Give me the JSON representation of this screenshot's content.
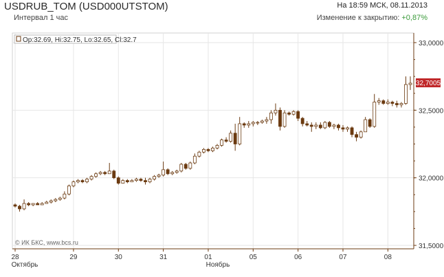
{
  "header": {
    "title": "USDRUB_TOM (USD000UTSTOM)",
    "subtitle": "Интервал 1 час",
    "timestamp": "На 18:59 МСК, 08.11.2013",
    "change_label": "Изменение к закрытию:",
    "change_value": "+0,87%"
  },
  "legend": {
    "ohlc": "Op:32.69, Hi:32.75, Lo:32.65, Cl:32.7"
  },
  "copyright": "© ИК БКС, www.bcs.ru",
  "last_price_label": "32,7005",
  "colors": {
    "up": "#ffffff",
    "down": "#6b3a10",
    "wick": "#6b3a10",
    "axis": "#6b3a10",
    "grid": "#e6e6e6",
    "last_price_bg": "#c0282a"
  },
  "chart_data": {
    "type": "candlestick",
    "y_axis": {
      "position": "right",
      "ylim": [
        31.5,
        33.0
      ],
      "ticks": [
        33.0,
        32.5,
        32.0,
        31.5
      ],
      "tick_labels": [
        "33,0000",
        "32,5000",
        "32,0000",
        "31,5000"
      ]
    },
    "x_axis": {
      "ticks": [
        {
          "label": "28",
          "sublabel": "Октябрь",
          "index": 0
        },
        {
          "label": "29",
          "sublabel": "",
          "index": 13
        },
        {
          "label": "30",
          "sublabel": "",
          "index": 23
        },
        {
          "label": "31",
          "sublabel": "",
          "index": 33
        },
        {
          "label": "01",
          "sublabel": "Ноябрь",
          "index": 43
        },
        {
          "label": "05",
          "sublabel": "",
          "index": 53
        },
        {
          "label": "06",
          "sublabel": "",
          "index": 63
        },
        {
          "label": "07",
          "sublabel": "",
          "index": 73
        },
        {
          "label": "08",
          "sublabel": "",
          "index": 83
        }
      ]
    },
    "candles": [
      [
        31.8,
        31.81,
        31.78,
        31.79
      ],
      [
        31.79,
        31.8,
        31.75,
        31.77
      ],
      [
        31.77,
        31.84,
        31.76,
        31.81
      ],
      [
        31.81,
        31.82,
        31.79,
        31.8
      ],
      [
        31.8,
        31.81,
        31.79,
        31.81
      ],
      [
        31.81,
        31.82,
        31.8,
        31.8
      ],
      [
        31.8,
        31.82,
        31.8,
        31.81
      ],
      [
        31.81,
        31.83,
        31.81,
        31.82
      ],
      [
        31.82,
        31.84,
        31.81,
        31.83
      ],
      [
        31.83,
        31.85,
        31.82,
        31.84
      ],
      [
        31.84,
        31.86,
        31.83,
        31.85
      ],
      [
        31.85,
        31.9,
        31.84,
        31.88
      ],
      [
        31.88,
        31.95,
        31.87,
        31.94
      ],
      [
        31.94,
        31.98,
        31.93,
        31.97
      ],
      [
        31.97,
        31.99,
        31.96,
        31.98
      ],
      [
        31.98,
        31.99,
        31.96,
        31.97
      ],
      [
        31.97,
        32.0,
        31.96,
        31.99
      ],
      [
        31.99,
        32.02,
        31.98,
        32.01
      ],
      [
        32.01,
        32.04,
        32.0,
        32.03
      ],
      [
        32.03,
        32.05,
        32.02,
        32.04
      ],
      [
        32.04,
        32.05,
        32.02,
        32.03
      ],
      [
        32.03,
        32.11,
        32.03,
        32.05
      ],
      [
        32.05,
        32.06,
        31.99,
        32.0
      ],
      [
        32.0,
        32.01,
        31.95,
        31.96
      ],
      [
        31.96,
        31.99,
        31.96,
        31.98
      ],
      [
        31.98,
        31.99,
        31.96,
        31.97
      ],
      [
        31.97,
        31.99,
        31.97,
        31.98
      ],
      [
        31.98,
        32.0,
        31.97,
        31.99
      ],
      [
        31.99,
        32.0,
        31.97,
        31.98
      ],
      [
        31.98,
        32.0,
        31.95,
        31.97
      ],
      [
        31.97,
        32.0,
        31.96,
        31.99
      ],
      [
        31.99,
        32.02,
        31.98,
        32.01
      ],
      [
        32.01,
        32.03,
        32.0,
        32.02
      ],
      [
        32.02,
        32.12,
        32.01,
        32.06
      ],
      [
        32.06,
        32.07,
        32.02,
        32.03
      ],
      [
        32.03,
        32.05,
        32.02,
        32.04
      ],
      [
        32.04,
        32.06,
        32.03,
        32.05
      ],
      [
        32.05,
        32.11,
        32.04,
        32.1
      ],
      [
        32.1,
        32.11,
        32.06,
        32.07
      ],
      [
        32.07,
        32.12,
        32.06,
        32.11
      ],
      [
        32.11,
        32.18,
        32.1,
        32.16
      ],
      [
        32.16,
        32.2,
        32.15,
        32.19
      ],
      [
        32.19,
        32.22,
        32.18,
        32.21
      ],
      [
        32.21,
        32.22,
        32.19,
        32.2
      ],
      [
        32.2,
        32.23,
        32.19,
        32.22
      ],
      [
        32.22,
        32.25,
        32.21,
        32.24
      ],
      [
        32.24,
        32.29,
        32.23,
        32.28
      ],
      [
        32.28,
        32.3,
        32.26,
        32.27
      ],
      [
        32.27,
        32.35,
        32.26,
        32.33
      ],
      [
        32.33,
        32.4,
        32.2,
        32.25
      ],
      [
        32.25,
        32.45,
        32.24,
        32.4
      ],
      [
        32.4,
        32.41,
        32.37,
        32.39
      ],
      [
        32.39,
        32.42,
        32.37,
        32.4
      ],
      [
        32.4,
        32.42,
        32.38,
        32.41
      ],
      [
        32.41,
        32.42,
        32.39,
        32.41
      ],
      [
        32.41,
        32.43,
        32.4,
        32.42
      ],
      [
        32.42,
        32.45,
        32.4,
        32.43
      ],
      [
        32.43,
        32.5,
        32.4,
        32.48
      ],
      [
        32.48,
        32.55,
        32.46,
        32.5
      ],
      [
        32.5,
        32.52,
        32.35,
        32.38
      ],
      [
        32.38,
        32.5,
        32.37,
        32.48
      ],
      [
        32.48,
        32.49,
        32.46,
        32.47
      ],
      [
        32.47,
        32.5,
        32.46,
        32.49
      ],
      [
        32.49,
        32.5,
        32.42,
        32.44
      ],
      [
        32.44,
        32.45,
        32.38,
        32.4
      ],
      [
        32.4,
        32.42,
        32.38,
        32.39
      ],
      [
        32.39,
        32.41,
        32.34,
        32.38
      ],
      [
        32.38,
        32.41,
        32.36,
        32.39
      ],
      [
        32.39,
        32.41,
        32.36,
        32.37
      ],
      [
        32.37,
        32.42,
        32.36,
        32.41
      ],
      [
        32.41,
        32.42,
        32.37,
        32.38
      ],
      [
        32.38,
        32.4,
        32.36,
        32.39
      ],
      [
        32.39,
        32.4,
        32.35,
        32.37
      ],
      [
        32.37,
        32.39,
        32.34,
        32.36
      ],
      [
        32.36,
        32.38,
        32.34,
        32.37
      ],
      [
        32.37,
        32.38,
        32.3,
        32.32
      ],
      [
        32.32,
        32.34,
        32.27,
        32.3
      ],
      [
        32.3,
        32.35,
        32.29,
        32.34
      ],
      [
        32.34,
        32.45,
        32.34,
        32.43
      ],
      [
        32.43,
        32.44,
        32.37,
        32.38
      ],
      [
        32.38,
        32.62,
        32.37,
        32.56
      ],
      [
        32.56,
        32.59,
        32.54,
        32.57
      ],
      [
        32.57,
        32.58,
        32.54,
        32.55
      ],
      [
        32.55,
        32.58,
        32.54,
        32.56
      ],
      [
        32.56,
        32.57,
        32.53,
        32.55
      ],
      [
        32.55,
        32.57,
        32.52,
        32.54
      ],
      [
        32.54,
        32.56,
        32.52,
        32.55
      ],
      [
        32.55,
        32.75,
        32.54,
        32.69
      ],
      [
        32.69,
        32.75,
        32.65,
        32.7
      ]
    ]
  }
}
